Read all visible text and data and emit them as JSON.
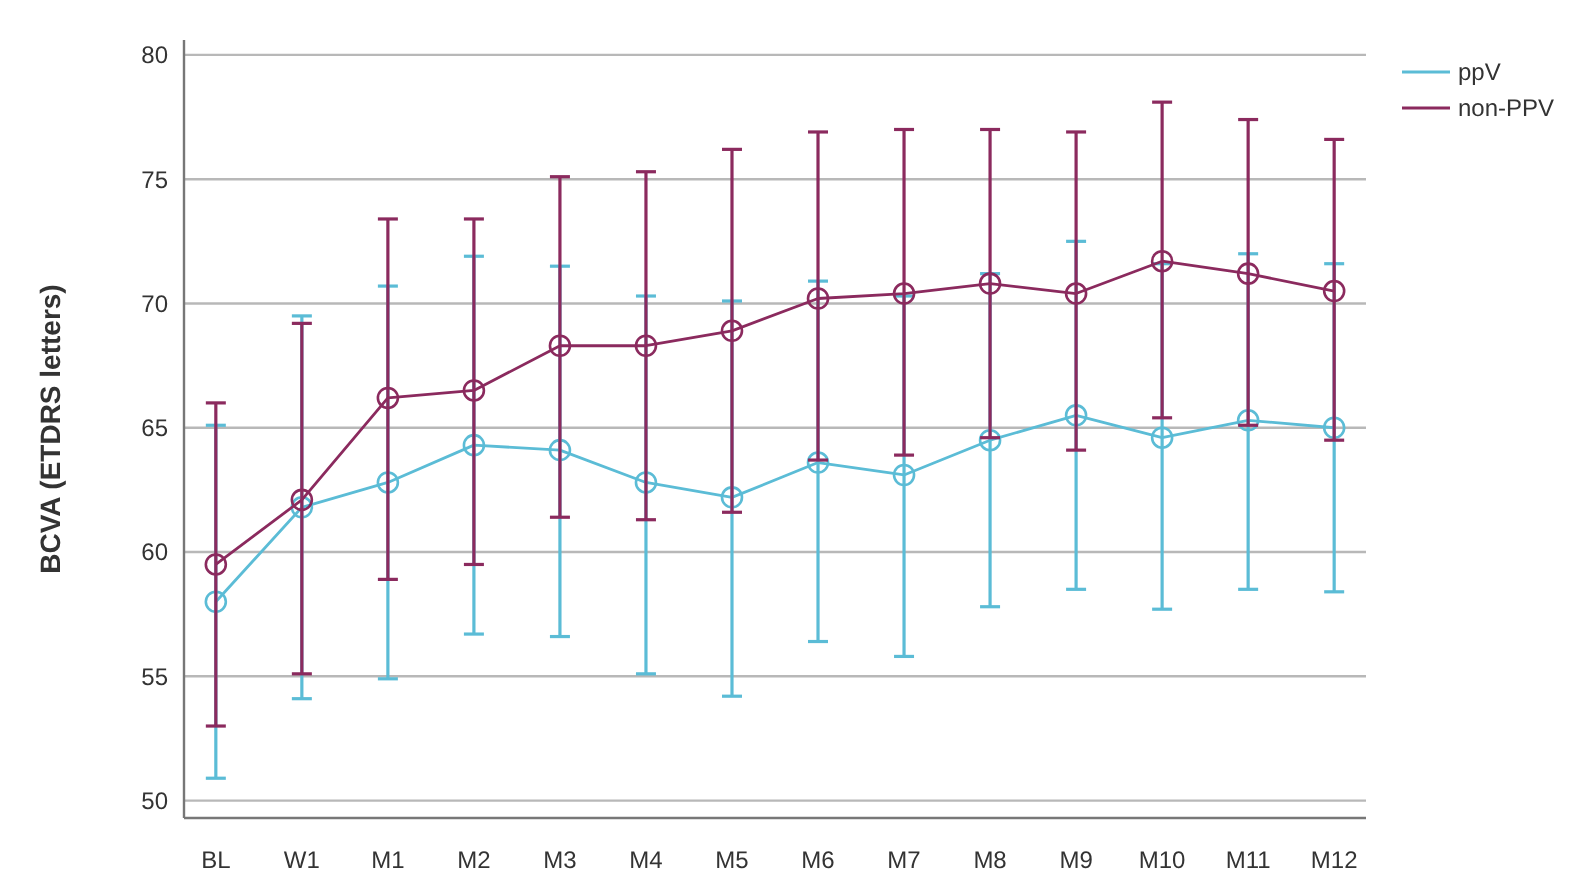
{
  "chart_data": {
    "type": "line",
    "ylabel": "BCVA (ETDRS letters)",
    "categories": [
      "BL",
      "W1",
      "M1",
      "M2",
      "M3",
      "M4",
      "M5",
      "M6",
      "M7",
      "M8",
      "M9",
      "M10",
      "M11",
      "M12"
    ],
    "ylim": [
      49.3,
      80.6
    ],
    "yticks": [
      50,
      55,
      60,
      65,
      70,
      75,
      80
    ],
    "grid": "y",
    "legend": "top right",
    "marker": "circle",
    "series": [
      {
        "name": "ppV",
        "color": "#5bbcd6",
        "values": [
          58.0,
          61.8,
          62.8,
          64.3,
          64.1,
          62.8,
          62.2,
          63.6,
          63.1,
          64.5,
          65.5,
          64.6,
          65.3,
          65.0
        ],
        "errors": [
          [
            50.9,
            65.1
          ],
          [
            54.1,
            69.5
          ],
          [
            54.9,
            70.7
          ],
          [
            56.7,
            71.9
          ],
          [
            56.6,
            71.5
          ],
          [
            55.1,
            70.3
          ],
          [
            54.2,
            70.1
          ],
          [
            56.4,
            70.9
          ],
          [
            55.8,
            70.3
          ],
          [
            57.8,
            71.2
          ],
          [
            58.5,
            72.5
          ],
          [
            57.7,
            71.6
          ],
          [
            58.5,
            72.0
          ],
          [
            58.4,
            71.6
          ]
        ]
      },
      {
        "name": "non-PPV",
        "color": "#8b2a5e",
        "values": [
          59.5,
          62.1,
          66.2,
          66.5,
          68.3,
          68.3,
          68.9,
          70.2,
          70.4,
          70.8,
          70.4,
          71.7,
          71.2,
          70.5
        ],
        "errors": [
          [
            53.0,
            66.0
          ],
          [
            55.1,
            69.2
          ],
          [
            58.9,
            73.4
          ],
          [
            59.5,
            73.4
          ],
          [
            61.4,
            75.1
          ],
          [
            61.3,
            75.3
          ],
          [
            61.6,
            76.2
          ],
          [
            63.7,
            76.9
          ],
          [
            63.9,
            77.0
          ],
          [
            64.6,
            77.0
          ],
          [
            64.1,
            76.9
          ],
          [
            65.4,
            78.1
          ],
          [
            65.1,
            77.4
          ],
          [
            64.5,
            76.6
          ]
        ]
      }
    ]
  }
}
